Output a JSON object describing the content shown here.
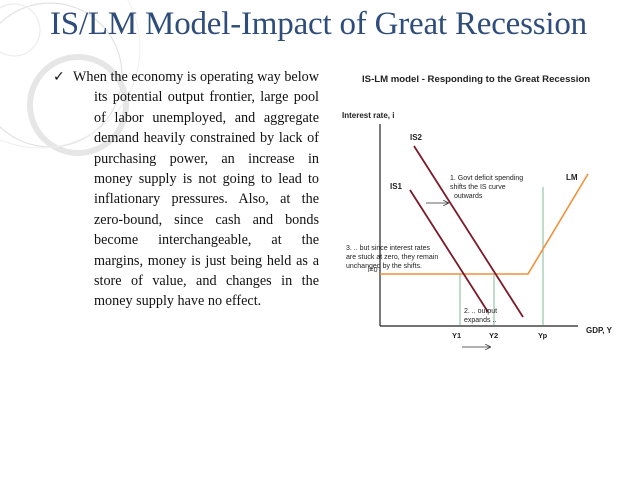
{
  "slide": {
    "title": "IS/LM Model-Impact of Great Recession",
    "bullet_text": "When the economy is operating way below its potential output frontier, large pool of labor unemployed, and aggregate demand heavily constrained by lack of purchasing power, an increase in money supply is not going to lead to inflationary pressures. Also, at the zero-bound, since cash and bonds become interchangeable, at the margins, money is just being held as a store of value, and changes in the money supply have no effect."
  },
  "colors": {
    "title": "#2e4d7a",
    "is_curves": "#7a1a2a",
    "lm_curve": "#f0913a",
    "axes": "#222222",
    "guides": "#2e8b57"
  },
  "chart_data": {
    "type": "diagram",
    "title": "IS-LM model - Responding to the Great Recession",
    "ylabel": "Interest rate, i",
    "xlabel": "GDP, Y",
    "curves": {
      "is1": "IS1",
      "is2": "IS2",
      "lm": "LM"
    },
    "axis_markers": {
      "i0": "i=0",
      "y1": "Y1",
      "y2": "Y2",
      "yp": "Yp"
    },
    "annotations": {
      "note1": [
        "1. Govt deficit spending",
        "shifts the IS curve",
        "outwards"
      ],
      "note2": [
        "2. .. output",
        "expands .."
      ],
      "note3": [
        "3. .. but since interest rates",
        "are stuck at zero, they remain",
        "unchanged by the shifts."
      ]
    }
  }
}
